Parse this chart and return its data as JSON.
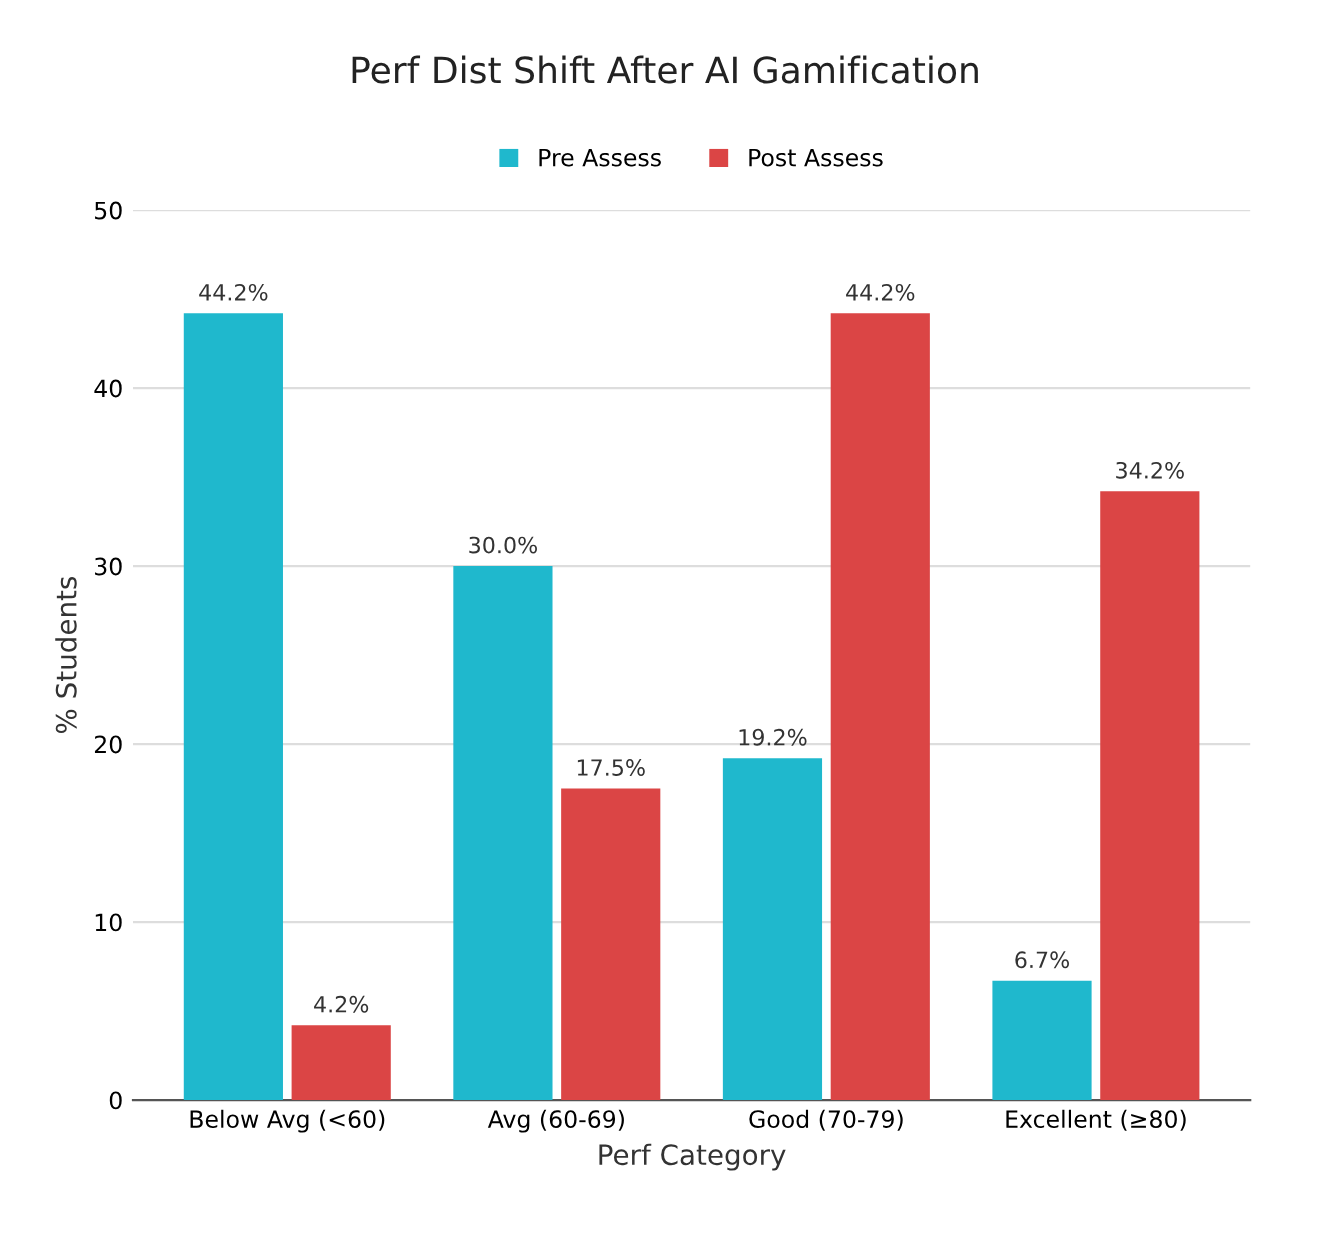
{
  "chart_data": {
    "type": "bar",
    "title": "Perf Dist Shift After AI Gamification",
    "xlabel": "Perf Category",
    "ylabel": "% Students",
    "categories": [
      "Below Avg (<60)",
      "Avg (60-69)",
      "Good (70-79)",
      "Excellent (≥80)"
    ],
    "series": [
      {
        "name": "Pre Assess",
        "color": "#1fb8cd",
        "values": [
          44.2,
          30.0,
          19.2,
          6.7
        ],
        "value_labels": [
          "44.2%",
          "30.0%",
          "19.2%",
          "6.7%"
        ]
      },
      {
        "name": "Post Assess",
        "color": "#db4545",
        "values": [
          4.2,
          17.5,
          44.2,
          34.2
        ],
        "value_labels": [
          "4.2%",
          "17.5%",
          "44.2%",
          "34.2%"
        ]
      }
    ],
    "ylim": [
      0,
      50
    ],
    "yticks": [
      0,
      10,
      20,
      30,
      40,
      50
    ],
    "grid": "y",
    "legend": "top"
  }
}
